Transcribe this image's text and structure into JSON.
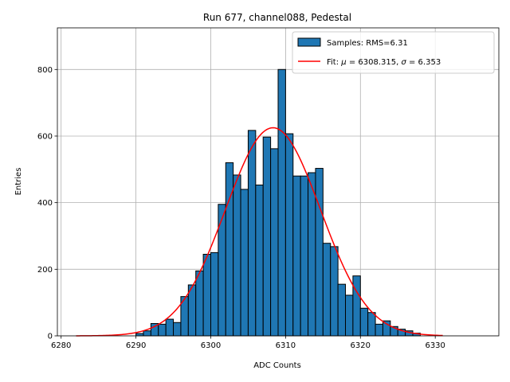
{
  "chart_data": {
    "type": "bar",
    "title": "Run 677, channel088, Pedestal",
    "xlabel": "ADC Counts",
    "ylabel": "Entries",
    "xlim": [
      6279.5,
      6338.5
    ],
    "ylim": [
      0,
      925
    ],
    "xticks": [
      6280,
      6290,
      6300,
      6310,
      6320,
      6330
    ],
    "yticks": [
      0,
      200,
      400,
      600,
      800
    ],
    "grid": true,
    "legend_placement": "top-right",
    "bin_width": 1,
    "series": [
      {
        "name": "Samples: RMS=6.31",
        "kind": "histogram",
        "color": "#1f77b4",
        "edge_color": "#000000",
        "bin_left_edges": [
          6290,
          6291,
          6292,
          6293,
          6294,
          6295,
          6296,
          6297,
          6298,
          6299,
          6300,
          6301,
          6302,
          6303,
          6304,
          6305,
          6306,
          6307,
          6308,
          6309,
          6310,
          6311,
          6312,
          6313,
          6314,
          6315,
          6316,
          6317,
          6318,
          6319,
          6320,
          6321,
          6322,
          6323,
          6324,
          6325,
          6326,
          6327
        ],
        "values": [
          7,
          15,
          37,
          35,
          50,
          40,
          118,
          153,
          195,
          245,
          250,
          395,
          520,
          483,
          440,
          617,
          453,
          597,
          562,
          800,
          607,
          480,
          480,
          490,
          503,
          278,
          268,
          155,
          122,
          180,
          83,
          70,
          35,
          45,
          28,
          20,
          15,
          8
        ]
      },
      {
        "name": "Fit: μ = 6308.315, σ = 6.353",
        "legend_parts": [
          "Fit: ",
          "μ",
          " = 6308.315, ",
          "σ",
          " = 6.353"
        ],
        "kind": "gaussian-fit",
        "color": "#ff0000",
        "mu": 6308.315,
        "sigma": 6.353,
        "amplitude": 625,
        "x_range": [
          6282,
          6331
        ]
      }
    ]
  }
}
